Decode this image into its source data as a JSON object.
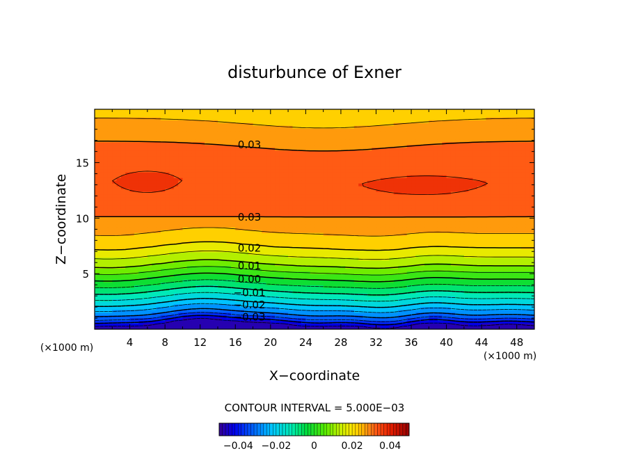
{
  "chart_data": {
    "type": "heatmap",
    "title": "disturbunce of Exner",
    "xlabel": "X−coordinate",
    "ylabel": "Z−coordinate",
    "x_unit": "(×1000 m)",
    "y_unit": "(×1000 m)",
    "xlim": [
      0,
      50
    ],
    "ylim": [
      0,
      19.8
    ],
    "x_ticks": [
      4,
      8,
      12,
      16,
      20,
      24,
      28,
      32,
      36,
      40,
      44,
      48
    ],
    "y_ticks": [
      5,
      10,
      15
    ],
    "contour_interval_text": "CONTOUR INTERVAL = 5.000E−03",
    "contour_interval": 0.005,
    "color_range": [
      -0.05,
      0.05
    ],
    "colorbar_ticks": [
      {
        "value": -0.04,
        "label": "−0.04"
      },
      {
        "value": -0.02,
        "label": "−0.02"
      },
      {
        "value": 0,
        "label": "0"
      },
      {
        "value": 0.02,
        "label": "0.02"
      },
      {
        "value": 0.04,
        "label": "0.04"
      }
    ],
    "contour_labels": [
      {
        "text": "0.03",
        "x": 17.6,
        "z": 16.6
      },
      {
        "text": "0.03",
        "x": 17.6,
        "z": 10.1
      },
      {
        "text": "0.02",
        "x": 17.6,
        "z": 7.3
      },
      {
        "text": "0.01",
        "x": 17.6,
        "z": 5.7
      },
      {
        "text": "0.00",
        "x": 17.6,
        "z": 4.5
      },
      {
        "text": "−0.01",
        "x": 17.6,
        "z": 3.3
      },
      {
        "text": "−0.02",
        "x": 17.6,
        "z": 2.2
      },
      {
        "text": "−0.03",
        "x": 17.6,
        "z": 1.1
      }
    ]
  }
}
